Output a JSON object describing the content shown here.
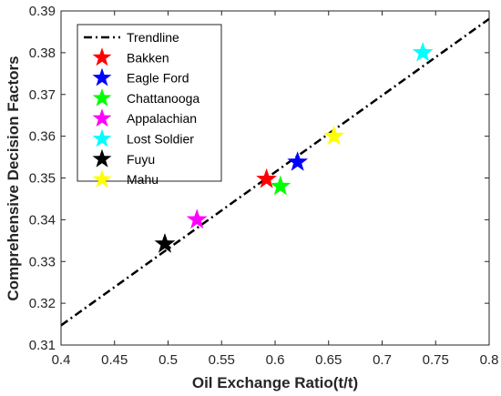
{
  "chart_data": {
    "type": "scatter",
    "xlabel": "Oil Exchange Ratio(t/t)",
    "ylabel": "Comprehensive Decision Factors",
    "xlim": [
      0.4,
      0.8
    ],
    "ylim": [
      0.31,
      0.39
    ],
    "xticks": [
      "0.4",
      "0.45",
      "0.5",
      "0.55",
      "0.6",
      "0.65",
      "0.7",
      "0.75",
      "0.8"
    ],
    "yticks": [
      "0.31",
      "0.32",
      "0.33",
      "0.34",
      "0.35",
      "0.36",
      "0.37",
      "0.38",
      "0.39"
    ],
    "grid": false,
    "legend_position": "top-left",
    "trendline": {
      "name": "Trendline",
      "x": [
        0.4,
        0.8
      ],
      "y": [
        0.3147,
        0.3881
      ],
      "color": "#000000",
      "style": "dash-dot"
    },
    "series": [
      {
        "name": "Bakken",
        "x": [
          0.592
        ],
        "y": [
          0.3497
        ],
        "color": "#ff0000"
      },
      {
        "name": "Eagle Ford",
        "x": [
          0.621
        ],
        "y": [
          0.3538
        ],
        "color": "#0000ff"
      },
      {
        "name": "Chattanooga",
        "x": [
          0.605
        ],
        "y": [
          0.348
        ],
        "color": "#00ff00"
      },
      {
        "name": "Appalachian",
        "x": [
          0.527
        ],
        "y": [
          0.34
        ],
        "color": "#ff00ff"
      },
      {
        "name": "Lost Soldier",
        "x": [
          0.738
        ],
        "y": [
          0.38
        ],
        "color": "#00ffff"
      },
      {
        "name": "Fuyu",
        "x": [
          0.497
        ],
        "y": [
          0.3342
        ],
        "color": "#000000"
      },
      {
        "name": "Mahu",
        "x": [
          0.655
        ],
        "y": [
          0.36
        ],
        "color": "#ffff00"
      }
    ]
  }
}
